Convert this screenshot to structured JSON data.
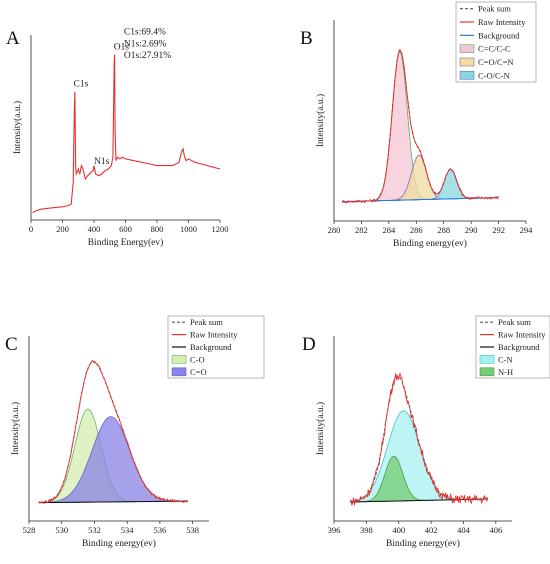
{
  "chart_data": [
    {
      "type": "line",
      "panel_label": "A",
      "xlabel": "Binding Energy(ev)",
      "ylabel": "Intensity(a.u.)",
      "xlim": [
        0,
        1200
      ],
      "xticks": [
        0,
        200,
        400,
        600,
        800,
        1000,
        1200
      ],
      "ylim": [
        0,
        1
      ],
      "series": [
        {
          "color": "#e8322f",
          "x": [
            10,
            30,
            60,
            100,
            150,
            200,
            230,
            255,
            268,
            275,
            279,
            283,
            287,
            292,
            300,
            310,
            320,
            330,
            345,
            360,
            380,
            395,
            400,
            410,
            430,
            450,
            470,
            490,
            510,
            520,
            528,
            531,
            534,
            540,
            550,
            565,
            580,
            600,
            650,
            700,
            750,
            800,
            850,
            900,
            940,
            955,
            965,
            975,
            985,
            1000,
            1040,
            1080,
            1120,
            1160,
            1200
          ],
          "y": [
            0.02,
            0.03,
            0.04,
            0.045,
            0.05,
            0.055,
            0.06,
            0.07,
            0.2,
            0.62,
            0.74,
            0.3,
            0.25,
            0.26,
            0.28,
            0.25,
            0.3,
            0.28,
            0.22,
            0.24,
            0.26,
            0.27,
            0.3,
            0.25,
            0.24,
            0.25,
            0.27,
            0.28,
            0.3,
            0.35,
            0.92,
            0.96,
            0.5,
            0.33,
            0.35,
            0.34,
            0.35,
            0.34,
            0.33,
            0.32,
            0.31,
            0.3,
            0.3,
            0.3,
            0.32,
            0.38,
            0.4,
            0.35,
            0.33,
            0.34,
            0.32,
            0.31,
            0.3,
            0.29,
            0.28
          ]
        }
      ],
      "annotations": [
        {
          "text": "C1s",
          "x": 270,
          "y": 0.77
        },
        {
          "text": "N1s",
          "x": 400,
          "y": 0.31
        },
        {
          "text": "O1s",
          "x": 525,
          "y": 0.99
        },
        {
          "text": "C1s:69.4%",
          "x": 590,
          "y": 1.08
        },
        {
          "text": "N1s:2.69%",
          "x": 590,
          "y": 1.01
        },
        {
          "text": "O1s:27.91%",
          "x": 590,
          "y": 0.94
        }
      ]
    },
    {
      "type": "area",
      "panel_label": "B",
      "xlabel": "Binding energy(ev)",
      "ylabel": "Intensity(a.u.)",
      "xlim": [
        280,
        294
      ],
      "xticks": [
        280,
        282,
        284,
        286,
        288,
        290,
        292,
        294
      ],
      "ylim": [
        0,
        1
      ],
      "background": [
        [
          280.6,
          0.02
        ],
        [
          292,
          0.045
        ]
      ],
      "components": [
        {
          "name": "C=C/C-C",
          "center": 284.8,
          "height": 0.9,
          "width": 0.55,
          "fill": "#f4c6d4",
          "stroke": "#62ad62"
        },
        {
          "name": "C=O/C=N",
          "center": 286.2,
          "height": 0.27,
          "width": 0.55,
          "fill": "#f0dca0",
          "stroke": "#8a6ab0"
        },
        {
          "name": "C-O/C-N",
          "center": 288.5,
          "height": 0.18,
          "width": 0.45,
          "fill": "#86d8e0",
          "stroke": "#7070cc"
        }
      ],
      "series": [
        {
          "name": "Peak sum",
          "style": "dashed",
          "color": "#555555"
        },
        {
          "name": "Raw Intensity",
          "color": "#e8322f"
        },
        {
          "name": "Background",
          "color": "#2a7ad6"
        }
      ],
      "legend_position": "top-right"
    },
    {
      "type": "area",
      "panel_label": "C",
      "xlabel": "Binding energy(ev)",
      "ylabel": "Intensity(a.u.)",
      "xlim": [
        528,
        539
      ],
      "xticks": [
        528,
        530,
        532,
        534,
        536,
        538
      ],
      "ylim": [
        0,
        1
      ],
      "background": [
        [
          528.6,
          0.015
        ],
        [
          537.7,
          0.025
        ]
      ],
      "components": [
        {
          "name": "C-O",
          "center": 531.6,
          "height": 0.6,
          "width": 0.8,
          "fill": "#d6ecb0",
          "stroke": "#6ab36a"
        },
        {
          "name": "C=O",
          "center": 533.0,
          "height": 0.55,
          "width": 1.15,
          "fill": "#8a82e6",
          "stroke": "#6a62d0"
        }
      ],
      "series": [
        {
          "name": "Peak sum",
          "style": "dashed",
          "color": "#555555"
        },
        {
          "name": "Raw Intensity",
          "color": "#e8322f"
        },
        {
          "name": "Background",
          "color": "#111111"
        }
      ],
      "legend_position": "top-right"
    },
    {
      "type": "area",
      "panel_label": "D",
      "xlabel": "Binding energy(ev)",
      "ylabel": "Intensity(a.u.)",
      "xlim": [
        396,
        407
      ],
      "xticks": [
        396,
        398,
        400,
        402,
        404,
        406
      ],
      "ylim": [
        0,
        1
      ],
      "background": [
        [
          397.0,
          0.02
        ],
        [
          405.5,
          0.04
        ]
      ],
      "components": [
        {
          "name": "C-N",
          "center": 400.3,
          "height": 0.6,
          "width": 1.0,
          "fill": "#a8f0f0",
          "stroke": "#3ac8c8"
        },
        {
          "name": "N-H",
          "center": 399.7,
          "height": 0.3,
          "width": 0.55,
          "fill": "#74cc74",
          "stroke": "#4a9a4a"
        }
      ],
      "series": [
        {
          "name": "Peak sum",
          "style": "dashed",
          "color": "#555555"
        },
        {
          "name": "Raw Intensity",
          "color": "#e8322f"
        },
        {
          "name": "Background",
          "color": "#111111"
        }
      ],
      "legend_position": "top-right"
    }
  ]
}
